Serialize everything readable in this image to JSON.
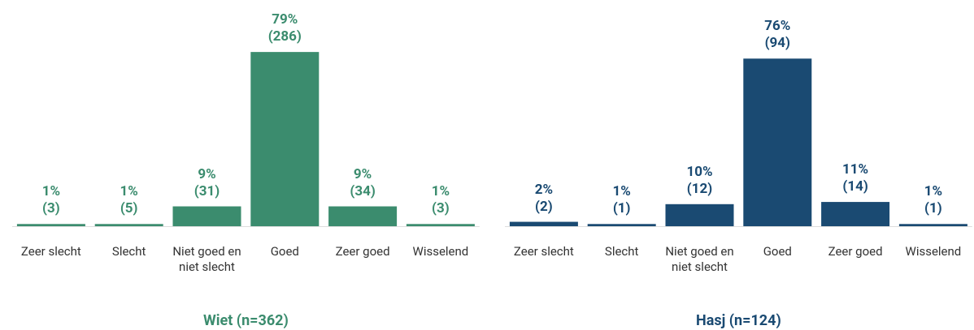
{
  "chart_data": [
    {
      "type": "bar",
      "title": "Wiet (n=362)",
      "color": "#3b8c6e",
      "categories": [
        "Zeer slecht",
        "Slecht",
        "Niet goed en niet slecht",
        "Goed",
        "Zeer goed",
        "Wisselend"
      ],
      "values": [
        1,
        1,
        9,
        79,
        9,
        1
      ],
      "value_labels": [
        "1%",
        "1%",
        "9%",
        "79%",
        "9%",
        "1%"
      ],
      "count_labels": [
        "(3)",
        "(5)",
        "(31)",
        "(286)",
        "(34)",
        "(3)"
      ]
    },
    {
      "type": "bar",
      "title": "Hasj (n=124)",
      "color": "#1a4a72",
      "categories": [
        "Zeer slecht",
        "Slecht",
        "Niet goed en niet slecht",
        "Goed",
        "Zeer goed",
        "Wisselend"
      ],
      "values": [
        2,
        1,
        10,
        76,
        11,
        1
      ],
      "value_labels": [
        "2%",
        "1%",
        "10%",
        "76%",
        "11%",
        "1%"
      ],
      "count_labels": [
        "(2)",
        "(1)",
        "(12)",
        "(94)",
        "(14)",
        "(1)"
      ]
    }
  ]
}
